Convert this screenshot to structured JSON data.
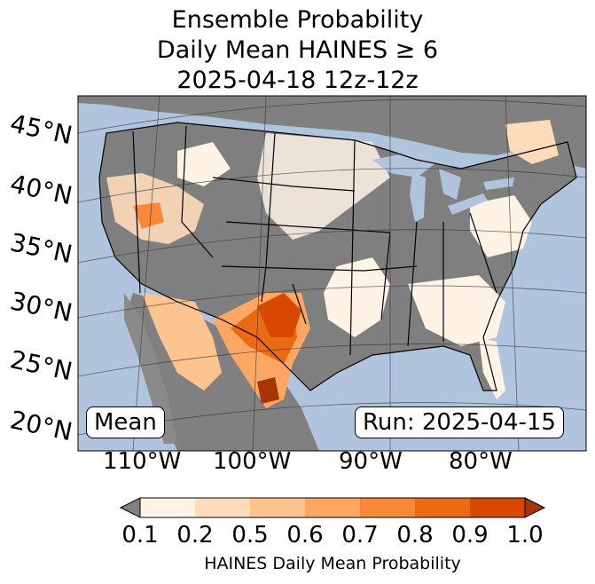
{
  "title": {
    "line1": "Ensemble Probability",
    "line2": "Daily Mean HAINES ≥ 6",
    "line3": "2025-04-18 12z-12z"
  },
  "map": {
    "background_ocean": "#b0c4de",
    "land_low": "#808080",
    "lat_labels": [
      "45°N",
      "40°N",
      "35°N",
      "30°N",
      "25°N",
      "20°N"
    ],
    "lon_labels": [
      "110°W",
      "100°W",
      "90°W",
      "80°W"
    ],
    "stat_label": "Mean",
    "run_label": "Run: 2025-04-15"
  },
  "colorbar": {
    "ticks": [
      "0.1",
      "0.2",
      "0.5",
      "0.6",
      "0.7",
      "0.8",
      "0.9",
      "1.0"
    ],
    "colors": [
      "#fff3e6",
      "#fedcba",
      "#fdc490",
      "#fda762",
      "#f98838",
      "#ed6a14",
      "#d94801",
      "#a63603"
    ],
    "under_color": "#808080",
    "label": "HAINES Daily Mean Probability"
  }
}
